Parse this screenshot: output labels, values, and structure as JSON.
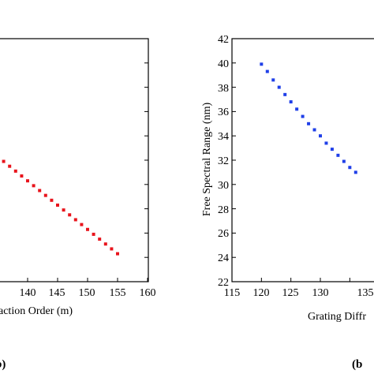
{
  "chart_data": [
    {
      "type": "scatter",
      "title": "",
      "xlabel": "action Order (m)",
      "ylabel": "",
      "x_ticks": [
        "140",
        "145",
        "150",
        "155",
        "160"
      ],
      "xlim": [
        115,
        160
      ],
      "ylim": [
        22,
        42
      ],
      "grid": false,
      "panel_label": "b)",
      "series": [
        {
          "color": "#e8141c",
          "marker": "square",
          "x": [
            136,
            137,
            138,
            139,
            140,
            141,
            142,
            143,
            144,
            145,
            146,
            147,
            148,
            149,
            150,
            151,
            152,
            153,
            154,
            155
          ],
          "y": [
            31.9,
            31.5,
            31.1,
            30.7,
            30.3,
            29.9,
            29.5,
            29.1,
            28.7,
            28.3,
            27.9,
            27.5,
            27.1,
            26.7,
            26.3,
            25.9,
            25.5,
            25.1,
            24.7,
            24.3
          ]
        }
      ]
    },
    {
      "type": "scatter",
      "title": "",
      "xlabel": "Grating Diffr",
      "ylabel": "Free Spectral Range (nm)",
      "x_ticks": [
        "115",
        "120",
        "125",
        "130",
        "135"
      ],
      "y_ticks": [
        "22",
        "24",
        "26",
        "28",
        "30",
        "32",
        "34",
        "36",
        "38",
        "40",
        "42"
      ],
      "xlim": [
        115,
        160
      ],
      "ylim": [
        22,
        42
      ],
      "grid": false,
      "panel_label": "(b",
      "series": [
        {
          "color": "#1f3fe8",
          "marker": "square",
          "x": [
            120,
            121,
            122,
            123,
            124,
            125,
            126,
            127,
            128,
            129,
            130,
            131,
            132,
            133,
            134,
            135,
            136
          ],
          "y": [
            39.9,
            39.3,
            38.6,
            38.0,
            37.4,
            36.8,
            36.2,
            35.6,
            35.0,
            34.5,
            34.0,
            33.4,
            32.9,
            32.4,
            31.9,
            31.4,
            31.0
          ]
        }
      ]
    }
  ]
}
